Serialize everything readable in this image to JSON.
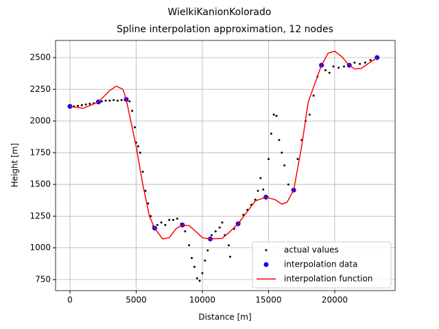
{
  "chart_data": {
    "type": "scatter-line",
    "title": "WielkiKanionKolorado",
    "subtitle": "Spline interpolation approximation, 12 nodes",
    "x_label": "Distance [m]",
    "y_label": "Height [m]",
    "xlim": [
      -1088,
      24560
    ],
    "ylim": [
      663,
      2635
    ],
    "xticks": [
      0,
      5000,
      10000,
      15000,
      20000
    ],
    "yticks": [
      750,
      1000,
      1250,
      1500,
      1750,
      2000,
      2250,
      2500
    ],
    "grid": true,
    "legend": "lower right",
    "series": [
      {
        "name": "actual values",
        "color": "#000000",
        "style": "dots",
        "x": [
          0,
          300,
          600,
          900,
          1200,
          1500,
          1800,
          2100,
          2400,
          2700,
          3000,
          3300,
          3600,
          3900,
          4200,
          4500,
          4700,
          4900,
          5000,
          5150,
          5300,
          5500,
          5700,
          5900,
          6100,
          6300,
          6600,
          6900,
          7200,
          7500,
          7800,
          8100,
          8400,
          8700,
          9000,
          9200,
          9400,
          9600,
          9800,
          10000,
          10200,
          10400,
          10700,
          11000,
          11300,
          11500,
          11700,
          12000,
          12100,
          12400,
          12800,
          13100,
          13400,
          13700,
          14000,
          14200,
          14400,
          14600,
          14800,
          15000,
          15200,
          15400,
          15600,
          15800,
          16000,
          16200,
          16500,
          16900,
          17200,
          17500,
          17800,
          18100,
          18400,
          18700,
          19000,
          19300,
          19600,
          19900,
          20300,
          20700,
          21100,
          21500,
          21900,
          22300,
          22700,
          23200
        ],
        "y": [
          2110,
          2115,
          2120,
          2125,
          2130,
          2135,
          2140,
          2150,
          2155,
          2160,
          2160,
          2165,
          2160,
          2165,
          2170,
          2155,
          2080,
          1950,
          1830,
          1800,
          1750,
          1600,
          1450,
          1350,
          1250,
          1170,
          1180,
          1200,
          1180,
          1220,
          1220,
          1230,
          1190,
          1130,
          1020,
          920,
          850,
          760,
          740,
          800,
          900,
          980,
          1100,
          1130,
          1160,
          1200,
          1100,
          1020,
          930,
          1150,
          1200,
          1260,
          1300,
          1340,
          1380,
          1450,
          1550,
          1460,
          1400,
          1700,
          1900,
          2050,
          2040,
          1850,
          1750,
          1650,
          1500,
          1460,
          1700,
          1850,
          2000,
          2050,
          2200,
          2350,
          2440,
          2400,
          2380,
          2430,
          2420,
          2430,
          2440,
          2460,
          2450,
          2460,
          2480,
          2500
        ]
      },
      {
        "name": "interpolation data",
        "color": "#0000ff",
        "style": "markers",
        "x": [
          0,
          2150,
          4250,
          6400,
          8500,
          10600,
          12700,
          14800,
          16900,
          19000,
          21100,
          23200
        ],
        "y": [
          2115,
          2150,
          2170,
          1155,
          1180,
          1070,
          1190,
          1400,
          1455,
          2440,
          2440,
          2500
        ]
      },
      {
        "name": "interpolation function",
        "color": "#ff0000",
        "style": "line",
        "x": [
          0,
          1000,
          2150,
          3000,
          3500,
          4000,
          4250,
          5000,
          5500,
          6000,
          6400,
          7000,
          7500,
          8000,
          8500,
          9000,
          9500,
          10000,
          10600,
          11500,
          12000,
          12700,
          13500,
          14000,
          14800,
          15500,
          16000,
          16400,
          16900,
          17500,
          18000,
          19000,
          19500,
          20000,
          20500,
          21100,
          21500,
          22000,
          22500,
          23200
        ],
        "y": [
          2115,
          2100,
          2150,
          2240,
          2275,
          2250,
          2170,
          1800,
          1500,
          1250,
          1155,
          1070,
          1080,
          1150,
          1180,
          1175,
          1130,
          1080,
          1070,
          1075,
          1120,
          1190,
          1300,
          1370,
          1400,
          1380,
          1345,
          1360,
          1455,
          1800,
          2150,
          2440,
          2535,
          2550,
          2510,
          2440,
          2410,
          2415,
          2450,
          2500
        ]
      }
    ]
  }
}
